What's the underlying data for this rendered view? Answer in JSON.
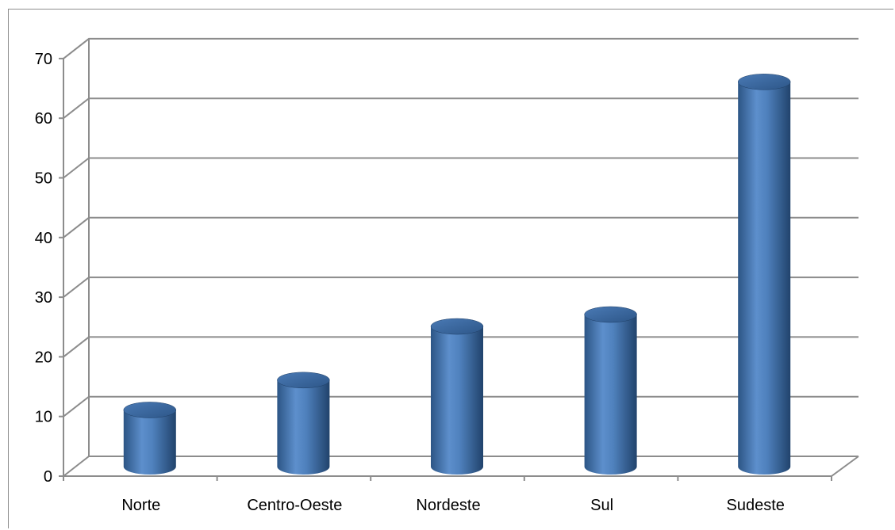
{
  "colors": {
    "bar_main": "#4f81bd",
    "bar_dark": "#2e5a8f",
    "bar_light": "#8fb4e3",
    "grid": "#8c8c8c",
    "axis": "#8c8c8c",
    "text": "#000000"
  },
  "chart_data": {
    "type": "bar",
    "style": "3d-cylinder",
    "categories": [
      "Norte",
      "Centro-Oeste",
      "Nordeste",
      "Sul",
      "Sudeste"
    ],
    "values": [
      9.5,
      14.5,
      23.5,
      25.5,
      64.5
    ],
    "yticks": [
      "0",
      "10",
      "20",
      "30",
      "40",
      "50",
      "60",
      "70"
    ],
    "ylim": [
      0,
      70
    ],
    "grid": true,
    "legend": "none"
  }
}
